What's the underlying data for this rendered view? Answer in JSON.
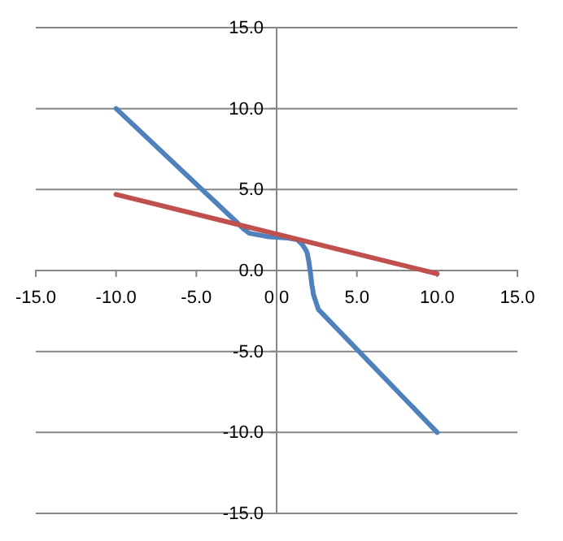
{
  "chart_data": {
    "type": "line",
    "xlim": [
      -15,
      15
    ],
    "xticks": [
      {
        "value": -15,
        "label": "-15.0"
      },
      {
        "value": -10,
        "label": "-10.0"
      },
      {
        "value": -5,
        "label": "-5.0"
      },
      {
        "value": 0,
        "label": "0.0"
      },
      {
        "value": 5,
        "label": "5.0"
      },
      {
        "value": 10,
        "label": "10.0"
      },
      {
        "value": 15,
        "label": "15.0"
      }
    ],
    "ylim": [
      -15,
      15
    ],
    "yticks": [
      {
        "value": -15,
        "label": "-15.0"
      },
      {
        "value": -10,
        "label": "-10.0"
      },
      {
        "value": -5,
        "label": "-5.0"
      },
      {
        "value": 0,
        "label": "0.0"
      },
      {
        "value": 5,
        "label": "5.0"
      },
      {
        "value": 10,
        "label": "10.0"
      },
      {
        "value": 15,
        "label": "15.0"
      }
    ],
    "grid": "y",
    "marker": "none",
    "line_style": "solid",
    "series": [
      {
        "color": "#4f81bd",
        "x": [
          -10,
          -2.5,
          -2.1,
          -1.7,
          -0.6,
          0.7,
          1.3,
          1.6,
          1.8,
          1.9,
          2.0,
          2.1,
          2.2,
          2.3,
          2.6,
          10
        ],
        "values": [
          10,
          3.0,
          2.6,
          2.3,
          2.1,
          2.0,
          1.9,
          1.6,
          1.3,
          1.1,
          0.6,
          -0.1,
          -0.9,
          -1.5,
          -2.4,
          -10
        ]
      },
      {
        "color": "#c0504d",
        "x": [
          -10,
          10
        ],
        "values": [
          4.7,
          -0.2
        ]
      }
    ]
  }
}
